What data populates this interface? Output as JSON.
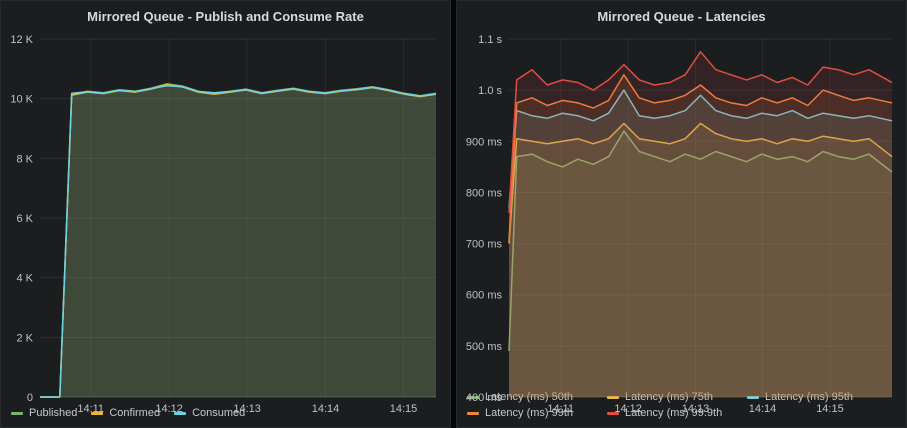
{
  "chart_data": [
    {
      "type": "area",
      "title": "Mirrored Queue - Publish and Consume Rate",
      "ylim": [
        0,
        12000
      ],
      "fill_opacity": 0.1,
      "grid": true,
      "legend_position": "bottom",
      "yticks": [
        {
          "value": 12000,
          "label": "12 K"
        },
        {
          "value": 10000,
          "label": "10 K"
        },
        {
          "value": 8000,
          "label": "8 K"
        },
        {
          "value": 6000,
          "label": "6 K"
        },
        {
          "value": 4000,
          "label": "4 K"
        },
        {
          "value": 2000,
          "label": "2 K"
        },
        {
          "value": 0,
          "label": "0"
        }
      ],
      "xticks": [
        {
          "pos": 0.128,
          "label": "14:11"
        },
        {
          "pos": 0.326,
          "label": "14:12"
        },
        {
          "pos": 0.523,
          "label": "14:13"
        },
        {
          "pos": 0.721,
          "label": "14:14"
        },
        {
          "pos": 0.918,
          "label": "14:15"
        }
      ],
      "x": [
        0,
        0.05,
        0.08,
        0.12,
        0.16,
        0.2,
        0.24,
        0.28,
        0.32,
        0.36,
        0.4,
        0.44,
        0.48,
        0.52,
        0.56,
        0.6,
        0.64,
        0.68,
        0.72,
        0.76,
        0.8,
        0.84,
        0.88,
        0.92,
        0.96,
        1.0
      ],
      "series": [
        {
          "name": "Published",
          "color": "#7EB26D",
          "values": [
            0,
            0,
            10150,
            10250,
            10200,
            10300,
            10250,
            10350,
            10500,
            10420,
            10250,
            10180,
            10250,
            10320,
            10200,
            10280,
            10350,
            10250,
            10200,
            10280,
            10330,
            10400,
            10300,
            10180,
            10100,
            10180
          ]
        },
        {
          "name": "Confirmed",
          "color": "#EAB839",
          "values": [
            0,
            0,
            10120,
            10220,
            10170,
            10270,
            10220,
            10320,
            10460,
            10390,
            10220,
            10150,
            10220,
            10290,
            10170,
            10250,
            10320,
            10220,
            10170,
            10250,
            10300,
            10370,
            10270,
            10150,
            10070,
            10150
          ]
        },
        {
          "name": "Consumed",
          "color": "#6ED0E0",
          "values": [
            0,
            0,
            10180,
            10230,
            10190,
            10280,
            10240,
            10330,
            10430,
            10400,
            10240,
            10200,
            10240,
            10300,
            10190,
            10260,
            10330,
            10240,
            10190,
            10260,
            10310,
            10380,
            10290,
            10170,
            10090,
            10160
          ]
        }
      ]
    },
    {
      "type": "area",
      "title": "Mirrored Queue - Latencies",
      "ylim": [
        400,
        1100
      ],
      "fill_opacity": 0.13,
      "grid": true,
      "legend_position": "bottom",
      "yticks": [
        {
          "value": 1100,
          "label": "1.1 s"
        },
        {
          "value": 1000,
          "label": "1.0 s"
        },
        {
          "value": 900,
          "label": "900 ms"
        },
        {
          "value": 800,
          "label": "800 ms"
        },
        {
          "value": 700,
          "label": "700 ms"
        },
        {
          "value": 600,
          "label": "600 ms"
        },
        {
          "value": 500,
          "label": "500 ms"
        },
        {
          "value": 400,
          "label": "400 ms"
        }
      ],
      "xticks": [
        {
          "pos": 0.135,
          "label": "14:11"
        },
        {
          "pos": 0.311,
          "label": "14:12"
        },
        {
          "pos": 0.487,
          "label": "14:13"
        },
        {
          "pos": 0.662,
          "label": "14:14"
        },
        {
          "pos": 0.838,
          "label": "14:15"
        }
      ],
      "x": [
        0,
        0.02,
        0.06,
        0.1,
        0.14,
        0.18,
        0.22,
        0.26,
        0.3,
        0.34,
        0.38,
        0.42,
        0.46,
        0.5,
        0.54,
        0.58,
        0.62,
        0.66,
        0.7,
        0.74,
        0.78,
        0.82,
        0.86,
        0.9,
        0.94,
        1.0
      ],
      "series": [
        {
          "name": "Latency (ms) 50th",
          "color": "#7EB26D",
          "values": [
            490,
            870,
            875,
            860,
            850,
            865,
            855,
            870,
            920,
            880,
            870,
            860,
            875,
            865,
            880,
            870,
            860,
            875,
            865,
            870,
            860,
            880,
            870,
            865,
            875,
            840
          ]
        },
        {
          "name": "Latency (ms) 75th",
          "color": "#EAB839",
          "values": [
            700,
            905,
            900,
            895,
            900,
            905,
            895,
            905,
            935,
            905,
            900,
            895,
            905,
            935,
            915,
            905,
            900,
            905,
            895,
            905,
            900,
            910,
            905,
            900,
            905,
            870
          ]
        },
        {
          "name": "Latency (ms) 95th",
          "color": "#6ED0E0",
          "values": [
            770,
            960,
            950,
            945,
            955,
            950,
            940,
            955,
            1000,
            950,
            945,
            950,
            960,
            990,
            960,
            950,
            945,
            955,
            950,
            960,
            945,
            955,
            950,
            945,
            950,
            940
          ]
        },
        {
          "name": "Latency (ms) 99th",
          "color": "#EF843C",
          "values": [
            705,
            975,
            985,
            970,
            980,
            975,
            965,
            980,
            1030,
            985,
            975,
            980,
            990,
            1010,
            985,
            975,
            970,
            985,
            975,
            985,
            970,
            1000,
            990,
            980,
            985,
            975
          ]
        },
        {
          "name": "Latency (ms) 99.9th",
          "color": "#E24D42",
          "values": [
            760,
            1020,
            1040,
            1010,
            1020,
            1015,
            1000,
            1020,
            1050,
            1020,
            1010,
            1015,
            1030,
            1075,
            1040,
            1030,
            1020,
            1030,
            1015,
            1025,
            1010,
            1045,
            1040,
            1030,
            1040,
            1015
          ]
        }
      ]
    }
  ]
}
